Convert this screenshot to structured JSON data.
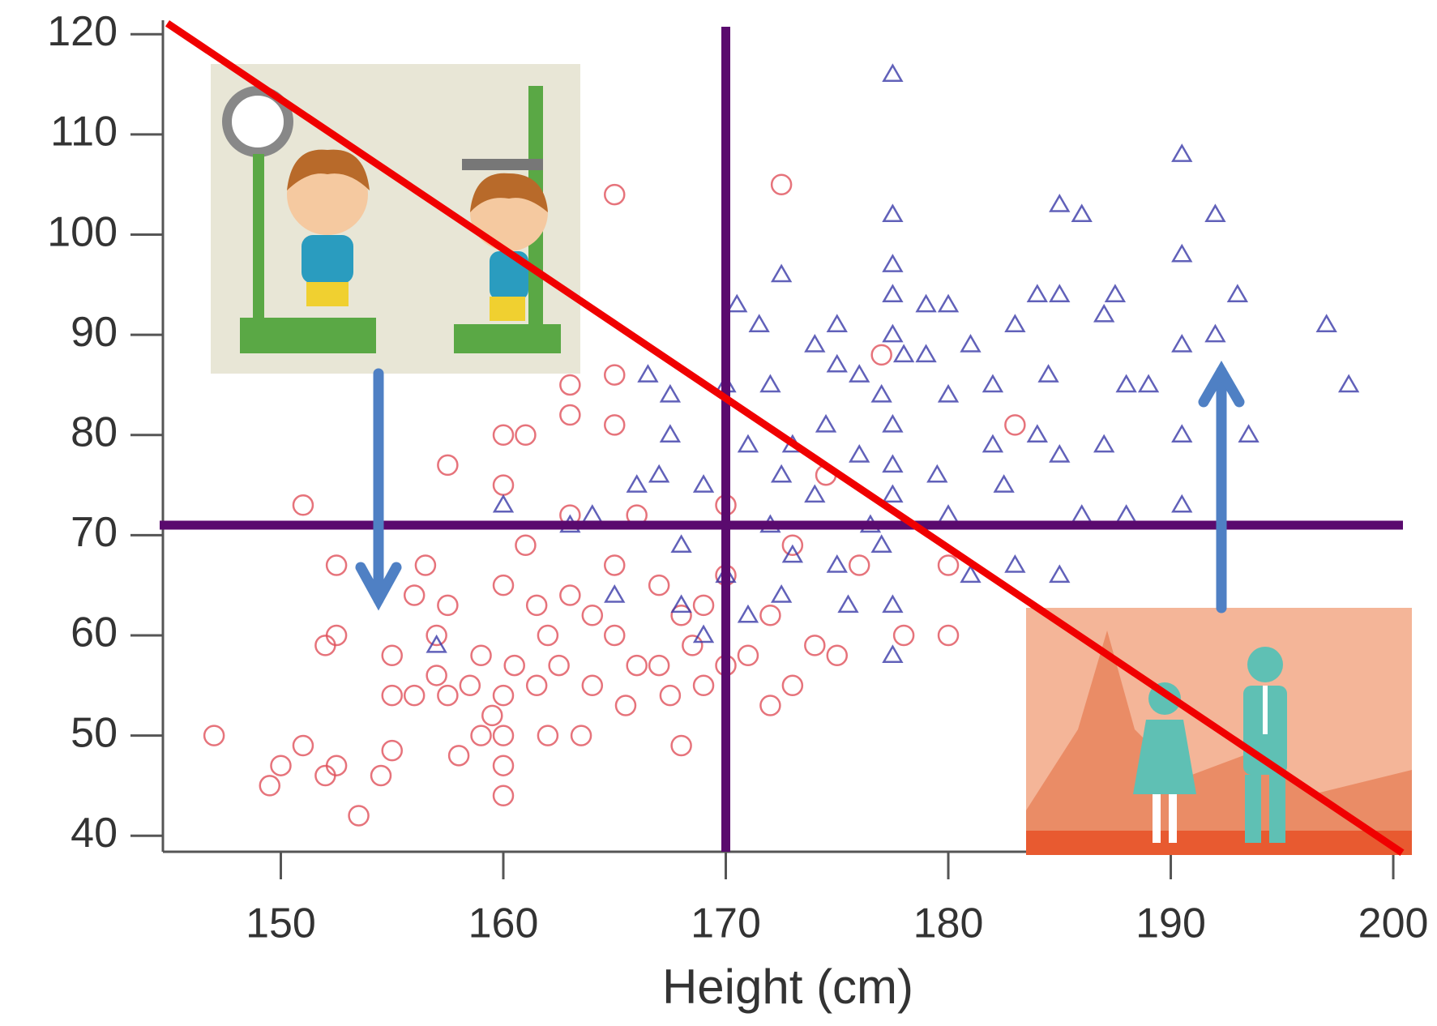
{
  "chart_data": {
    "type": "scatter",
    "x_label": "Height (cm)",
    "xlim": [
      144.7,
      200.8
    ],
    "ylim": [
      38.4,
      121.4
    ],
    "xticks": [
      150,
      160,
      170,
      180,
      190,
      200
    ],
    "yticks": [
      40,
      50,
      60,
      70,
      80,
      90,
      100,
      110,
      120
    ],
    "series": [
      {
        "marker": "circle",
        "color": "#e0505a",
        "x": [
          147,
          149.5,
          150,
          151,
          152,
          152.5,
          152.5,
          152,
          151,
          152.5,
          153.5,
          154.5,
          155,
          155,
          155,
          156,
          156.5,
          156,
          157,
          157,
          157.5,
          157.5,
          157.5,
          158,
          158.5,
          159,
          159,
          159.5,
          160,
          160,
          160,
          160,
          160,
          160,
          160,
          160.5,
          161,
          161,
          161.5,
          161.5,
          162,
          162,
          162.5,
          163,
          163,
          163,
          163,
          163.5,
          164,
          164,
          165,
          165,
          165,
          165,
          165,
          165.5,
          166,
          166,
          167,
          167,
          167.5,
          168,
          168,
          168.5,
          169,
          169,
          170,
          170,
          170,
          171,
          172,
          172,
          172.5,
          173,
          173,
          174,
          174.5,
          175,
          176,
          177,
          178,
          180,
          180,
          183
        ],
        "y": [
          50,
          45,
          47,
          49,
          46,
          47,
          60,
          59,
          73,
          67,
          42,
          46,
          48.5,
          54,
          58,
          64,
          67,
          54,
          60,
          56,
          63,
          54,
          77,
          48,
          55,
          50,
          58,
          52,
          44,
          47,
          50,
          54,
          65,
          75,
          80,
          57,
          80,
          69,
          63,
          55,
          60,
          50,
          57,
          85,
          82,
          72,
          64,
          50,
          62,
          55,
          60,
          67,
          86,
          81,
          104,
          53,
          57,
          72,
          65,
          57,
          54,
          62,
          49,
          59,
          63,
          55,
          73,
          66,
          57,
          58,
          53,
          62,
          105,
          69,
          55,
          59,
          76,
          58,
          67,
          88,
          60,
          60,
          67,
          81
        ]
      },
      {
        "marker": "triangle",
        "color": "#3a3aa8",
        "x": [
          157,
          160,
          163,
          164,
          165,
          166,
          166.5,
          167,
          167.5,
          167.5,
          168,
          168,
          169,
          169,
          170,
          170,
          170.5,
          171,
          171,
          171.5,
          172,
          172,
          172.5,
          172.5,
          172.5,
          173,
          173,
          174,
          174,
          174.5,
          175,
          175,
          175,
          175.5,
          176,
          176,
          176.5,
          177,
          177,
          177.5,
          177.5,
          177.5,
          177.5,
          177.5,
          177.5,
          177.5,
          177.5,
          177.5,
          177.5,
          178,
          179,
          179,
          179.5,
          180,
          180,
          180,
          181,
          181,
          182,
          182,
          182.5,
          183,
          183,
          184,
          184,
          184.5,
          185,
          185,
          185,
          185,
          186,
          186,
          187,
          187,
          187.5,
          188,
          188,
          189,
          190.5,
          190.5,
          190.5,
          190.5,
          190.5,
          192,
          192,
          193,
          193.5,
          197,
          198
        ],
        "y": [
          59,
          73,
          71,
          72,
          64,
          75,
          86,
          76,
          84,
          80,
          69,
          63,
          75,
          60,
          85,
          66,
          93,
          79,
          62,
          91,
          85,
          71,
          64,
          96,
          76,
          68,
          79,
          74,
          89,
          81,
          91,
          87,
          67,
          63,
          86,
          78,
          71,
          84,
          69,
          116,
          102,
          97,
          94,
          90,
          81,
          77,
          74,
          63,
          58,
          88,
          93,
          88,
          76,
          93,
          84,
          72,
          89,
          66,
          85,
          79,
          75,
          91,
          67,
          80,
          94,
          86,
          103,
          94,
          78,
          66,
          102,
          72,
          92,
          79,
          94,
          85,
          72,
          85,
          108,
          98,
          89,
          80,
          73,
          102,
          90,
          94,
          80,
          91,
          85
        ]
      }
    ],
    "reference_lines": [
      {
        "x": 170,
        "color": "#5a0a6e"
      },
      {
        "y": 71,
        "color": "#5a0a6e"
      }
    ],
    "trend_line": {
      "x": [
        144.9,
        200.4
      ],
      "y": [
        121.1,
        38.3
      ],
      "color": "#f00000"
    }
  }
}
